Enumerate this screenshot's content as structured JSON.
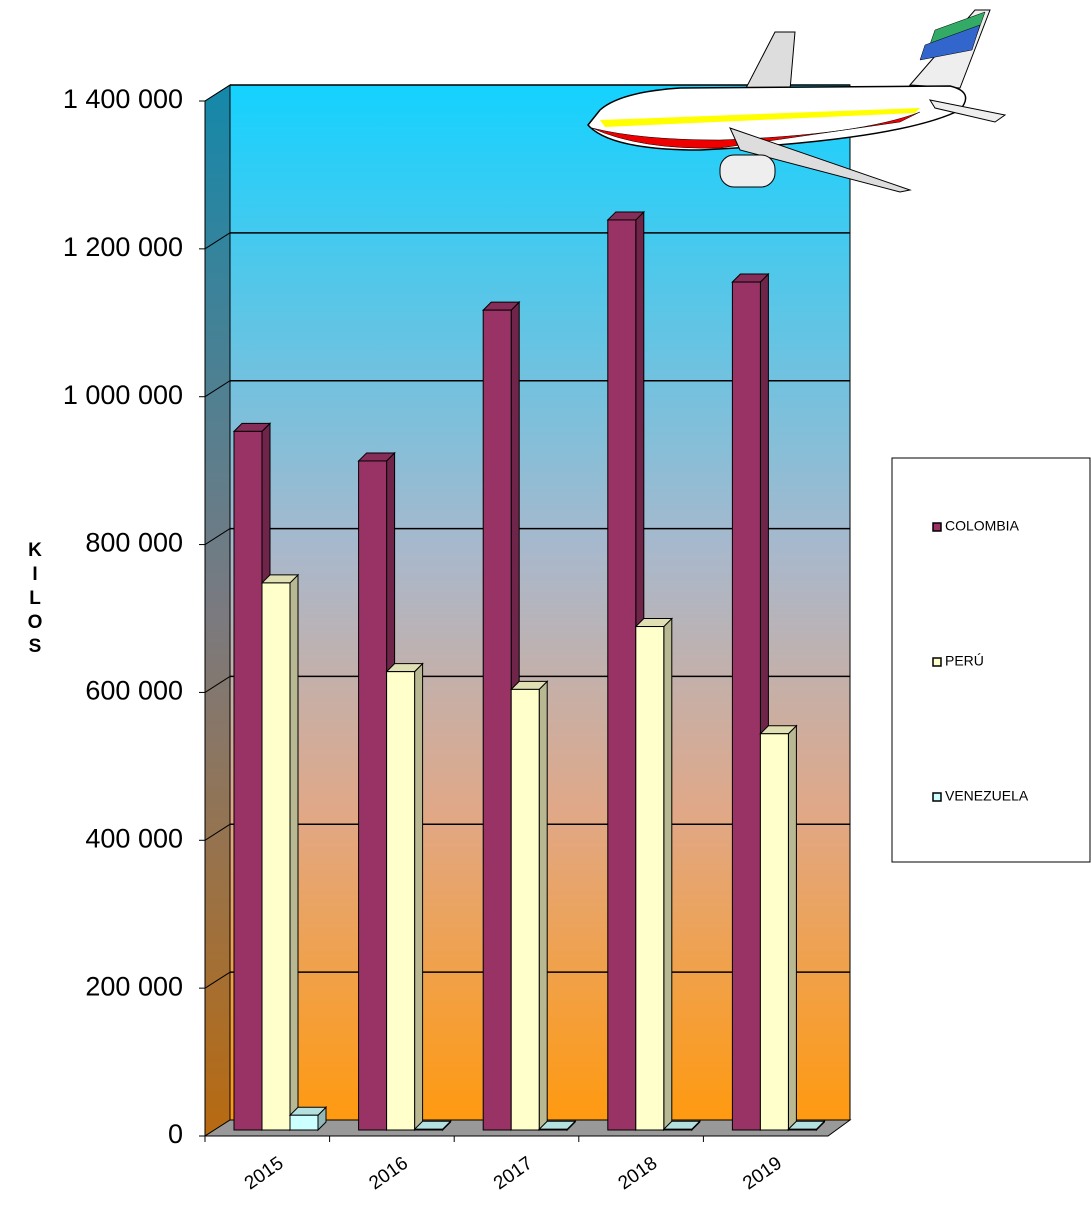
{
  "chart_data": {
    "type": "bar3d",
    "y_label": "KILOS",
    "categories": [
      "2015",
      "2016",
      "2017",
      "2018",
      "2019"
    ],
    "series": [
      {
        "name": "COLOMBIA",
        "color": "#993366",
        "values": [
          945000,
          905000,
          1109000,
          1231000,
          1147000
        ]
      },
      {
        "name": "PERÚ",
        "color": "#ffffcc",
        "values": [
          740000,
          620000,
          596000,
          681000,
          536000
        ]
      },
      {
        "name": "VENEZUELA",
        "color": "#ccffff",
        "values": [
          20000,
          1000,
          1000,
          1000,
          1000
        ]
      }
    ],
    "ylim": [
      0,
      1400000
    ],
    "yticks": [
      0,
      {
        "value": 200000,
        "label": "200 000"
      },
      {
        "value": 400000,
        "label": "400 000"
      },
      {
        "value": 600000,
        "label": "600 000"
      },
      {
        "value": 800000,
        "label": "800 000"
      },
      {
        "value": 1000000,
        "label": "1 000 000"
      },
      {
        "value": 1200000,
        "label": "1 200 000"
      },
      {
        "value": 1400000,
        "label": "1 400 000"
      }
    ],
    "grid": true,
    "legend": "right"
  }
}
